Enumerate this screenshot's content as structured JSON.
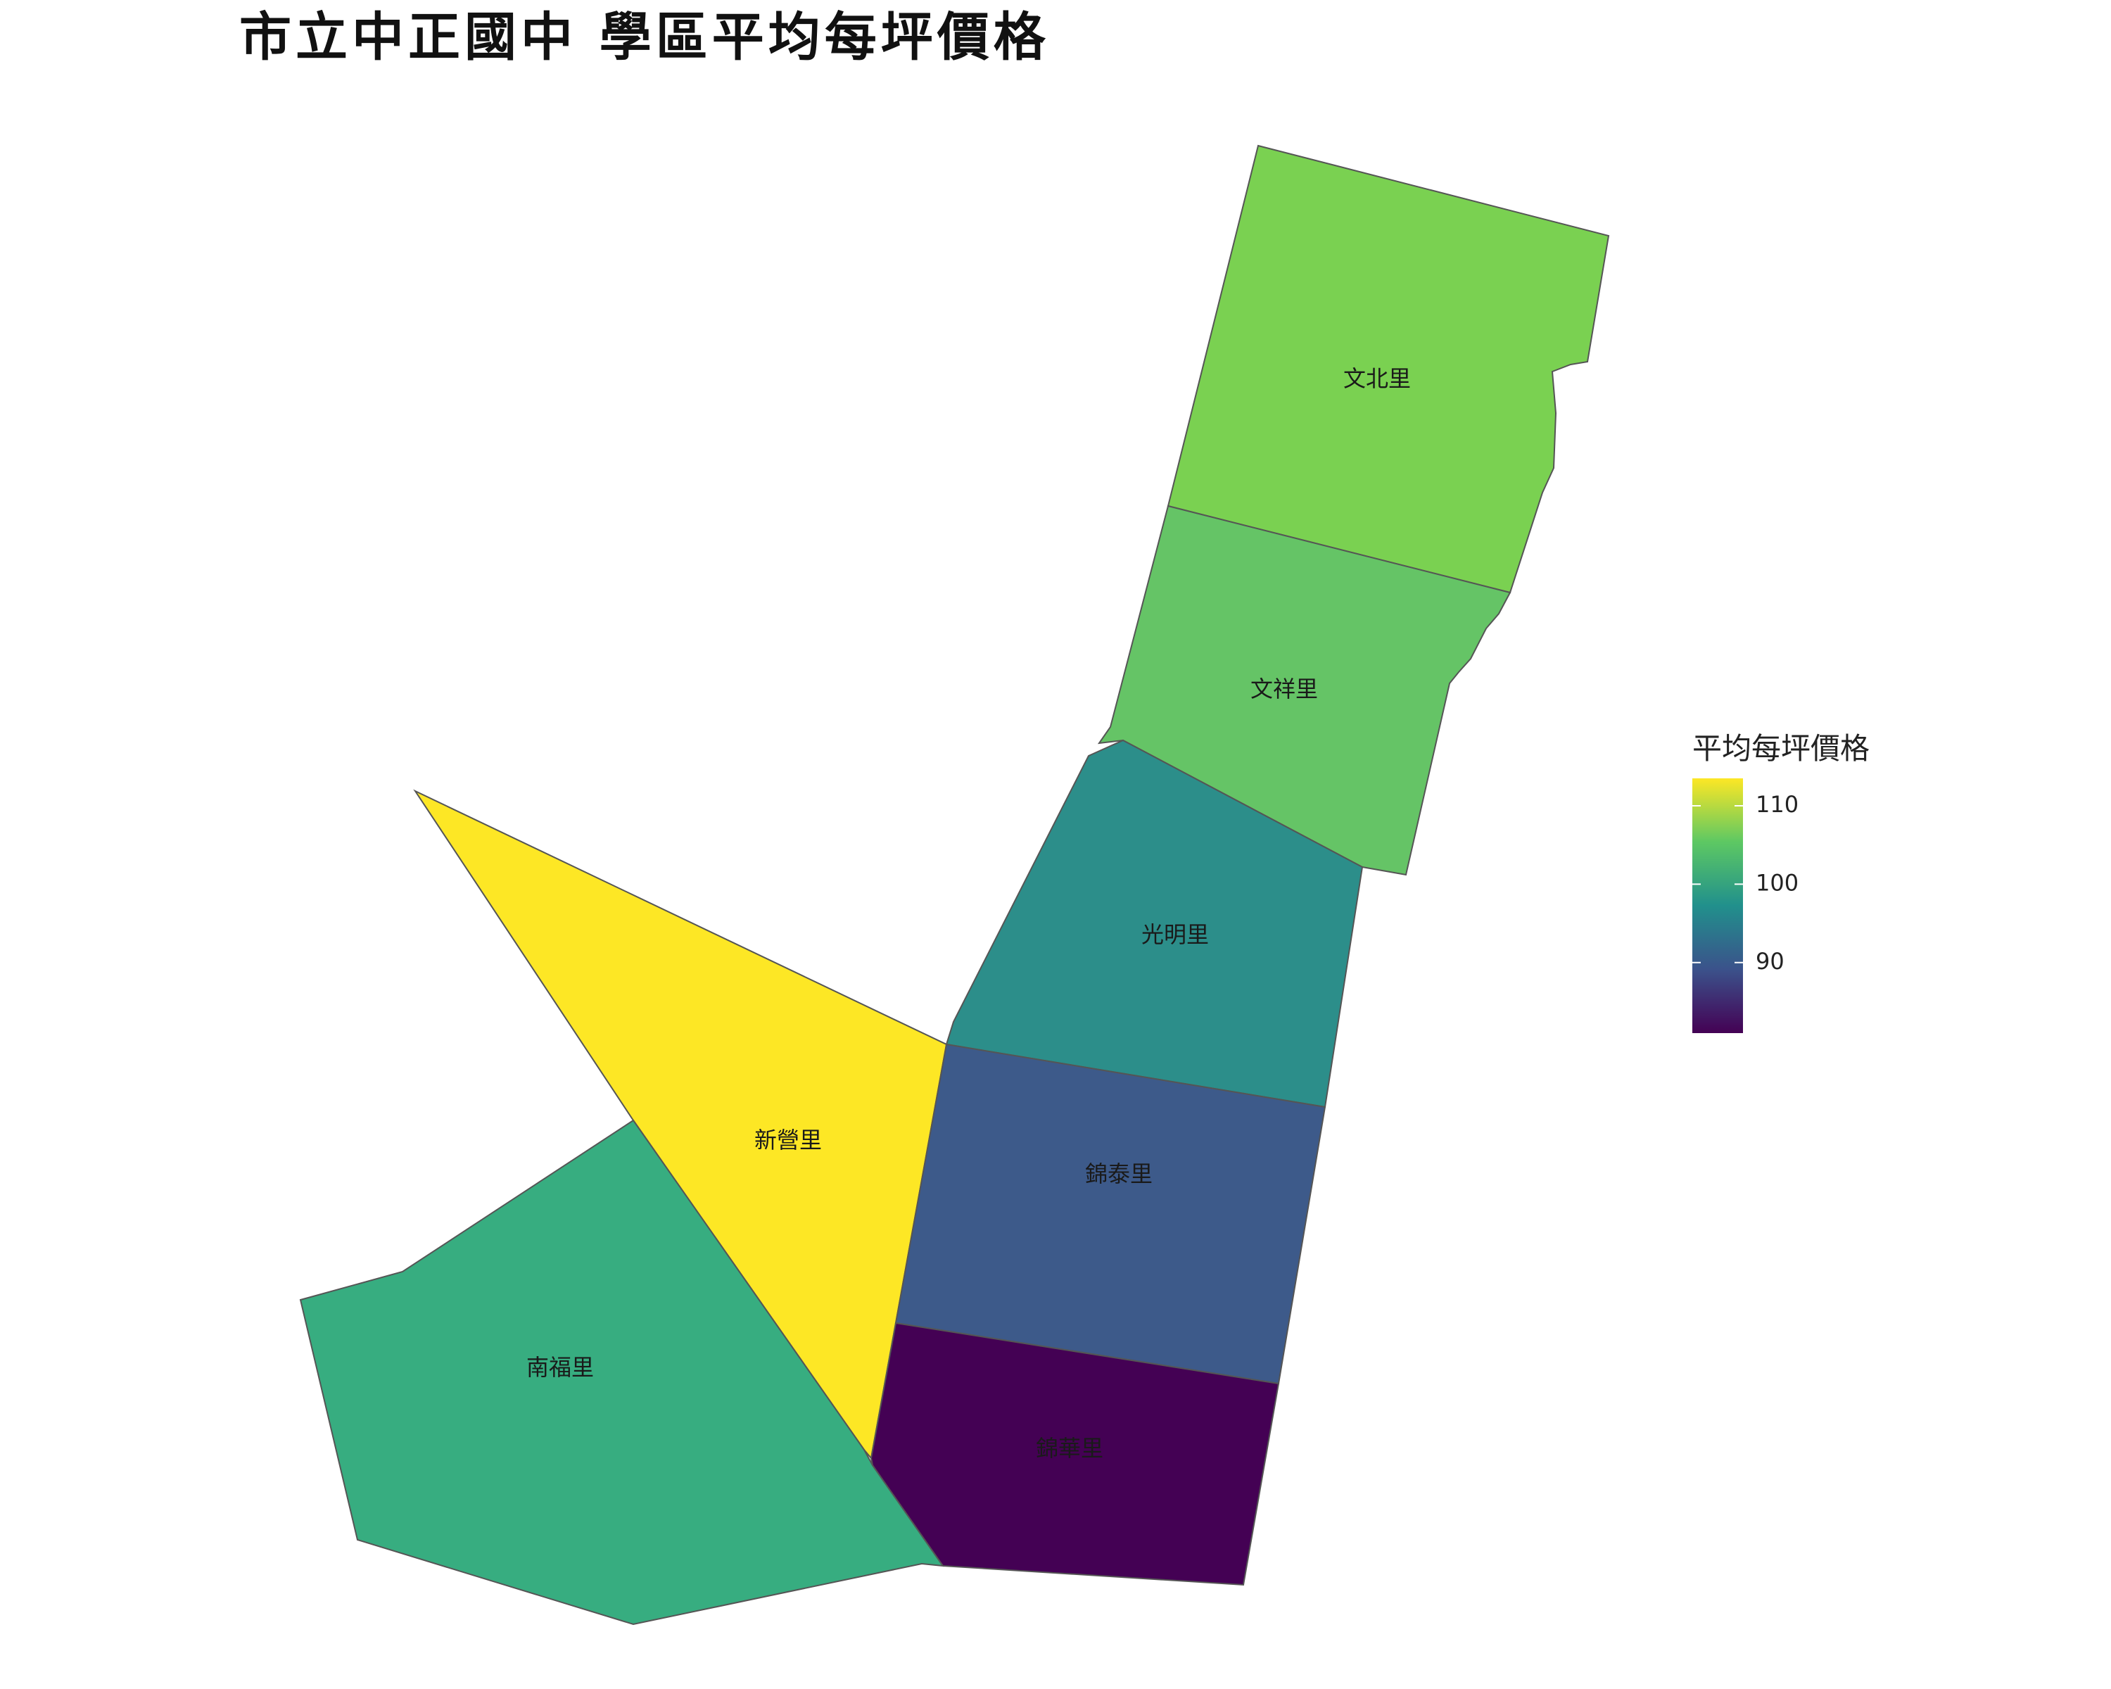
{
  "title": "市立中正國中 學區平均每坪價格",
  "colors": {
    "border": "#555555",
    "scale": [
      "#440154",
      "#3B528B",
      "#21908C",
      "#5DC863",
      "#FDE725"
    ]
  },
  "map": {
    "regions": [
      {
        "name": "文北里",
        "value": 105.9,
        "color": "#7AD151"
      },
      {
        "name": "文祥里",
        "value": 104.5,
        "color": "#65C466"
      },
      {
        "name": "光明里",
        "value": 96.0,
        "color": "#2C8E8A"
      },
      {
        "name": "新營里",
        "value": 113.5,
        "color": "#FDE725"
      },
      {
        "name": "錦泰里",
        "value": 89.0,
        "color": "#3D5A8A"
      },
      {
        "name": "南福里",
        "value": 100.8,
        "color": "#37AD80"
      },
      {
        "name": "錦華里",
        "value": 81.0,
        "color": "#440154"
      }
    ]
  },
  "legend": {
    "title": "平均每坪價格",
    "ticks": [
      {
        "label": "110",
        "value": 110
      },
      {
        "label": "100",
        "value": 100
      },
      {
        "label": "90",
        "value": 90
      }
    ],
    "min": 81,
    "max": 113.5
  }
}
